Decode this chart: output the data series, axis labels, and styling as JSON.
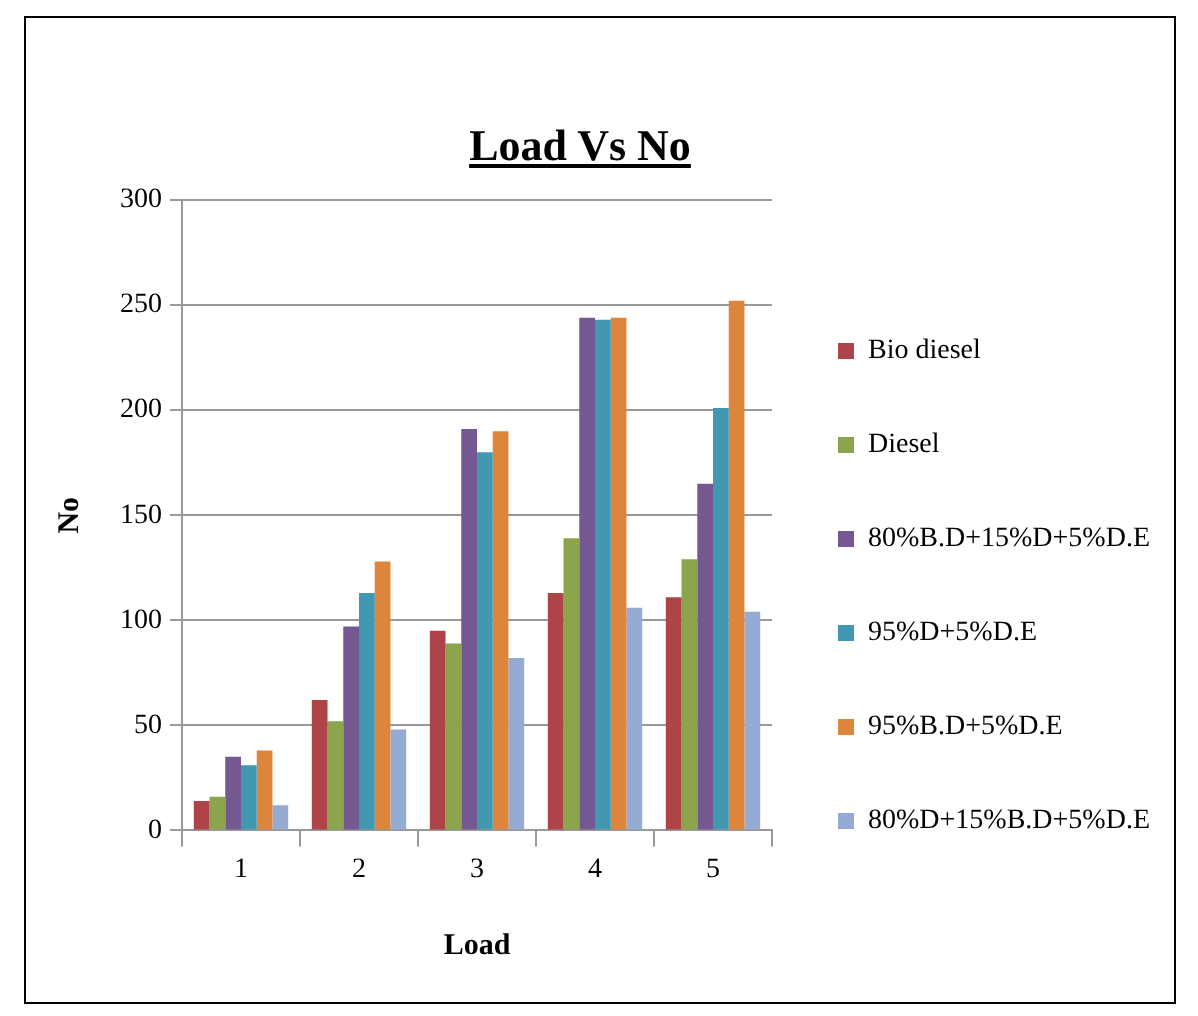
{
  "chart_data": {
    "type": "bar",
    "title": "Load Vs No",
    "xlabel": "Load",
    "ylabel": "No",
    "categories": [
      "1",
      "2",
      "3",
      "4",
      "5"
    ],
    "series": [
      {
        "name": "Bio diesel",
        "color": "#af4448",
        "values": [
          14,
          62,
          95,
          113,
          111
        ]
      },
      {
        "name": "Diesel",
        "color": "#8ca54c",
        "values": [
          16,
          52,
          89,
          139,
          129
        ]
      },
      {
        "name": "80%B.D+15%D+5%D.E",
        "color": "#735892",
        "values": [
          35,
          97,
          191,
          244,
          165
        ]
      },
      {
        "name": "95%D+5%D.E",
        "color": "#4198b0",
        "values": [
          31,
          113,
          180,
          243,
          201
        ]
      },
      {
        "name": "95%B.D+5%D.E",
        "color": "#de853c",
        "values": [
          38,
          128,
          190,
          244,
          252
        ]
      },
      {
        "name": "80%D+15%B.D+5%D.E",
        "color": "#95abd3",
        "values": [
          12,
          48,
          82,
          106,
          104
        ]
      }
    ],
    "ylim": [
      0,
      300
    ],
    "yticks": [
      0,
      50,
      100,
      150,
      200,
      250,
      300
    ],
    "grid": "y",
    "legend": "right"
  }
}
